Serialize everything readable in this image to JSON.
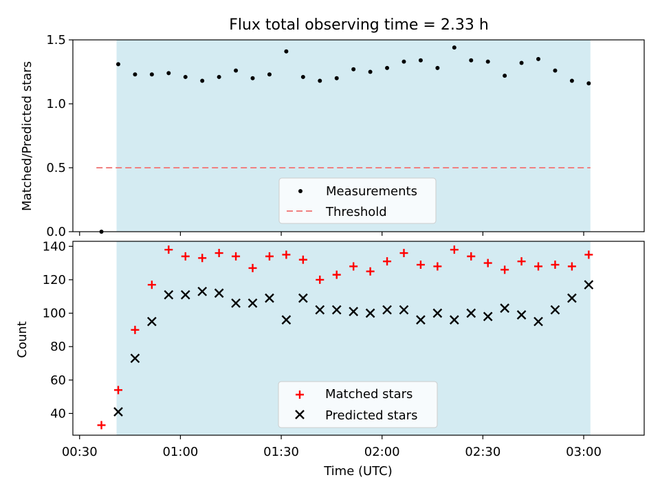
{
  "chart_data": [
    {
      "type": "scatter",
      "title": "Flux total observing time = 2.33 h",
      "xlabel": "",
      "ylabel": "Matched/Predicted stars",
      "xlim": [
        28,
        198
      ],
      "ylim": [
        0,
        1.5
      ],
      "yticks": [
        0.0,
        0.5,
        1.0,
        1.5
      ],
      "ytick_labels": [
        "0.0",
        "0.5",
        "1.0",
        "1.5"
      ],
      "xticks": [
        30,
        60,
        90,
        120,
        150,
        180
      ],
      "observing_window": [
        41,
        182
      ],
      "series": [
        {
          "name": "Measurements",
          "marker": "dot",
          "color": "#000000",
          "x": [
            36.5,
            41.5,
            46.5,
            51.5,
            56.5,
            61.5,
            66.5,
            71.5,
            76.5,
            81.5,
            86.5,
            91.5,
            96.5,
            101.5,
            106.5,
            111.5,
            116.5,
            121.5,
            126.5,
            131.5,
            136.5,
            141.5,
            146.5,
            151.5,
            156.5,
            161.5,
            166.5,
            171.5,
            176.5,
            181.5
          ],
          "y": [
            0.0,
            1.31,
            1.23,
            1.23,
            1.24,
            1.21,
            1.18,
            1.21,
            1.26,
            1.2,
            1.23,
            1.41,
            1.21,
            1.18,
            1.2,
            1.27,
            1.25,
            1.28,
            1.33,
            1.34,
            1.28,
            1.44,
            1.34,
            1.33,
            1.22,
            1.32,
            1.35,
            1.26,
            1.18,
            1.16
          ]
        },
        {
          "name": "Threshold",
          "style": "dashed",
          "color": "#f08080",
          "x": [
            35,
            182
          ],
          "y": [
            0.5,
            0.5
          ]
        }
      ],
      "legend": {
        "position": "lower-center",
        "entries": [
          "Measurements",
          "Threshold"
        ]
      }
    },
    {
      "type": "scatter",
      "title": "",
      "xlabel": "Time (UTC)",
      "ylabel": "Count",
      "xlim": [
        28,
        198
      ],
      "ylim": [
        27,
        143
      ],
      "yticks": [
        40,
        60,
        80,
        100,
        120,
        140
      ],
      "ytick_labels": [
        "40",
        "60",
        "80",
        "100",
        "120",
        "140"
      ],
      "xticks": [
        30,
        60,
        90,
        120,
        150,
        180
      ],
      "xtick_labels": [
        "00:30",
        "01:00",
        "01:30",
        "02:00",
        "02:30",
        "03:00"
      ],
      "observing_window": [
        41,
        182
      ],
      "series": [
        {
          "name": "Matched stars",
          "marker": "plus",
          "color": "#ff0000",
          "x": [
            36.5,
            41.5,
            46.5,
            51.5,
            56.5,
            61.5,
            66.5,
            71.5,
            76.5,
            81.5,
            86.5,
            91.5,
            96.5,
            101.5,
            106.5,
            111.5,
            116.5,
            121.5,
            126.5,
            131.5,
            136.5,
            141.5,
            146.5,
            151.5,
            156.5,
            161.5,
            166.5,
            171.5,
            176.5,
            181.5
          ],
          "y": [
            33,
            54,
            90,
            117,
            138,
            134,
            133,
            136,
            134,
            127,
            134,
            135,
            132,
            120,
            123,
            128,
            125,
            131,
            136,
            129,
            128,
            138,
            134,
            130,
            126,
            131,
            128,
            129,
            128,
            135
          ]
        },
        {
          "name": "Predicted stars",
          "marker": "x",
          "color": "#000000",
          "x": [
            41.5,
            46.5,
            51.5,
            56.5,
            61.5,
            66.5,
            71.5,
            76.5,
            81.5,
            86.5,
            91.5,
            96.5,
            101.5,
            106.5,
            111.5,
            116.5,
            121.5,
            126.5,
            131.5,
            136.5,
            141.5,
            146.5,
            151.5,
            156.5,
            161.5,
            166.5,
            171.5,
            176.5,
            181.5
          ],
          "y": [
            41,
            73,
            95,
            111,
            111,
            113,
            112,
            106,
            106,
            109,
            96,
            109,
            102,
            102,
            101,
            100,
            102,
            102,
            96,
            100,
            96,
            100,
            98,
            103,
            99,
            95,
            102,
            109,
            117
          ]
        }
      ],
      "legend": {
        "position": "lower-center",
        "entries": [
          "Matched stars",
          "Predicted stars"
        ]
      }
    }
  ],
  "colors": {
    "window": "#add8e6",
    "threshold": "#f08080",
    "matched": "#ff0000",
    "predicted": "#000000",
    "measurement": "#000000"
  }
}
